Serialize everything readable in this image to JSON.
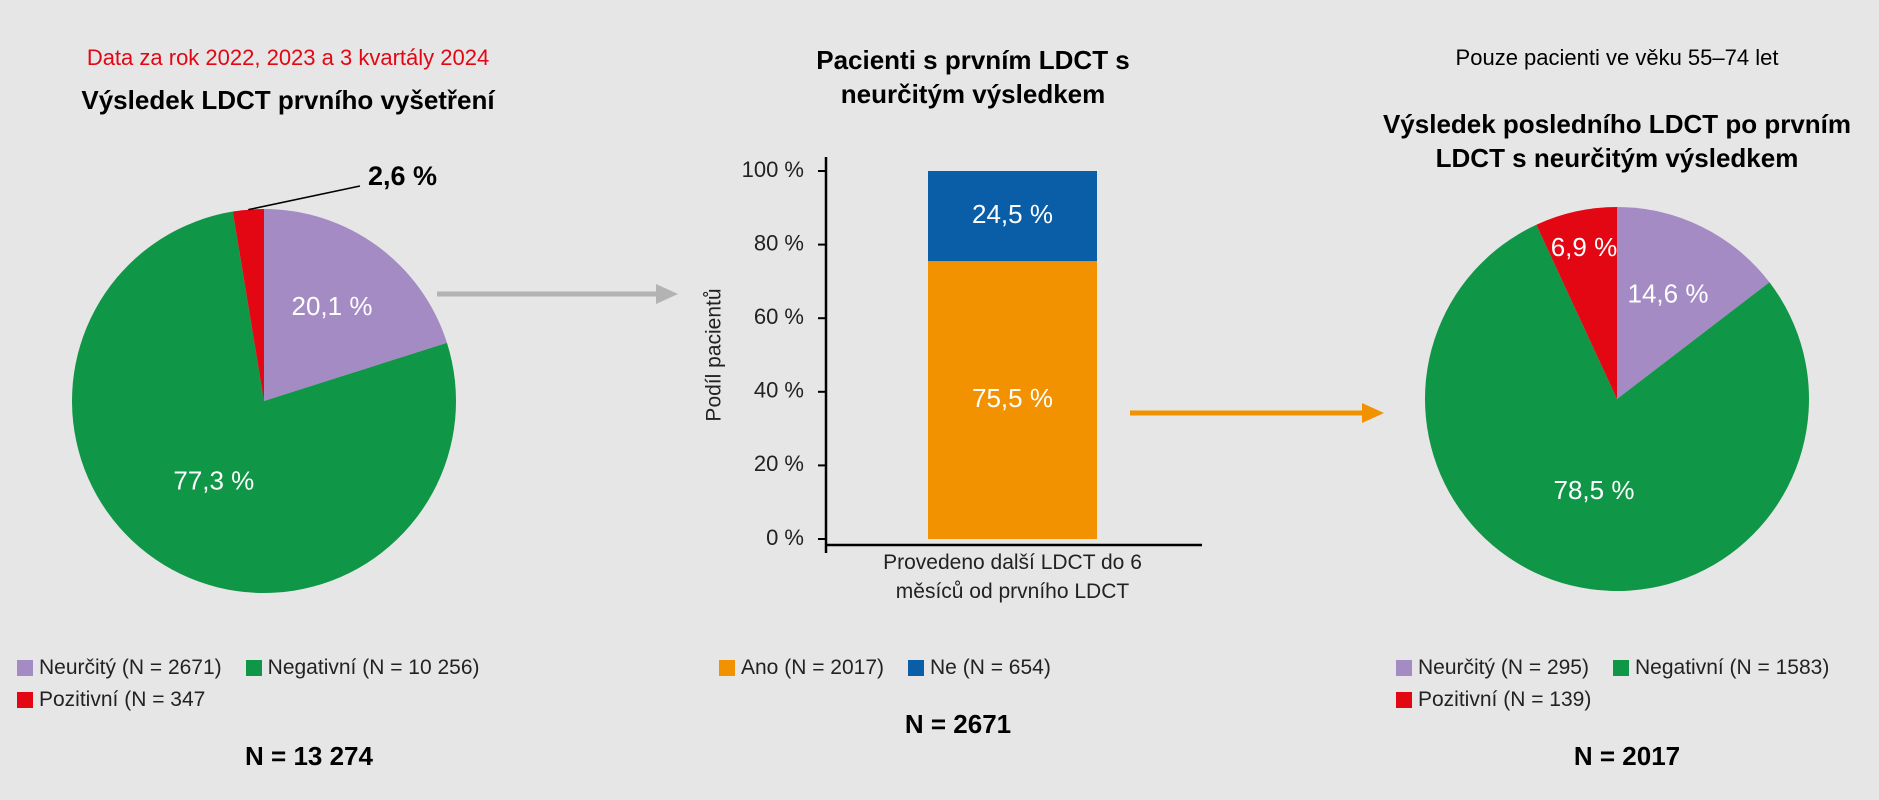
{
  "chart_data": [
    {
      "type": "pie",
      "subtitle": "Data za rok 2022, 2023 a 3 kvartály 2024",
      "subtitle_color": "#e30613",
      "title": "Výsledek LDCT prvního vyšetření",
      "categories": [
        "Neurčitý (N = 2671)",
        "Negativní (N = 10 256)",
        "Pozitivní (N = 347"
      ],
      "values": [
        20.1,
        77.3,
        2.6
      ],
      "value_labels": [
        "20,1 %",
        "77,3 %",
        "2,6 %"
      ],
      "colors": [
        "#a48bc4",
        "#0f9646",
        "#e30613"
      ],
      "footer": "N = 13 274"
    },
    {
      "type": "bar",
      "title": "Pacienti s prvním LDCT s neurčitým výsledkem",
      "categories": [
        "Provedeno další LDCT do 6 měsíců od prvního LDCT"
      ],
      "y_label": "Podíl pacientů",
      "stacked": true,
      "series": [
        {
          "name": "Ano (N = 2017)",
          "color": "#f39200",
          "values": [
            75.5
          ],
          "value_labels": [
            "75,5 %"
          ]
        },
        {
          "name": "Ne (N = 654)",
          "color": "#0a5ea8",
          "values": [
            24.5
          ],
          "value_labels": [
            "24,5 %"
          ]
        }
      ],
      "ylim": [
        0,
        100
      ],
      "yticks": [
        {
          "value": 0,
          "label": "0 %"
        },
        {
          "value": 20,
          "label": "20 %"
        },
        {
          "value": 40,
          "label": "40 %"
        },
        {
          "value": 60,
          "label": "60 %"
        },
        {
          "value": 80,
          "label": "80 %"
        },
        {
          "value": 100,
          "label": "100 %"
        }
      ],
      "footer": "N = 2671"
    },
    {
      "type": "pie",
      "subtitle": "Pouze pacienti ve věku 55–74 let",
      "subtitle_color": "#000000",
      "title": "Výsledek posledního LDCT po prvním LDCT s neurčitým výsledkem",
      "categories": [
        "Neurčitý (N = 295)",
        "Negativní (N = 1583)",
        "Pozitivní (N = 139)"
      ],
      "values": [
        14.6,
        78.5,
        6.9
      ],
      "value_labels": [
        "14,6 %",
        "78,5 %",
        "6,9 %"
      ],
      "colors": [
        "#a48bc4",
        "#0f9646",
        "#e30613"
      ],
      "footer": "N = 2017"
    }
  ]
}
